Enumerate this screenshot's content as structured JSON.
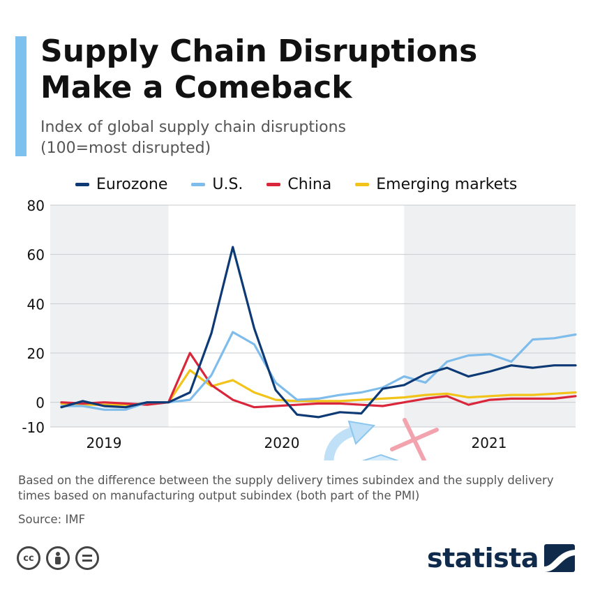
{
  "header": {
    "title_line1": "Supply Chain Disruptions",
    "title_line2": "Make a Comeback",
    "subtitle_line1": "Index of global supply chain disruptions",
    "subtitle_line2": "(100=most disrupted)",
    "accent_color": "#7ec0ee"
  },
  "footer": {
    "footnote": "Based on the difference between the supply delivery times subindex and the supply delivery times based on manufacturing output subindex (both part of the PMI)",
    "source": "Source: IMF",
    "brand": "statista",
    "license_icons": [
      "cc-icon",
      "by-icon",
      "nd-icon"
    ]
  },
  "chart_data": {
    "type": "line",
    "title": "Supply Chain Disruptions Make a Comeback",
    "subtitle": "Index of global supply chain disruptions (100=most disrupted)",
    "xlabel": "",
    "ylabel": "",
    "ylim": [
      -10,
      80
    ],
    "yticks": [
      "80",
      "60",
      "40",
      "20",
      "0",
      "-10"
    ],
    "ytick_values": [
      80,
      60,
      40,
      20,
      0,
      -10
    ],
    "x_labels": [
      "2019",
      "2020",
      "2021"
    ],
    "x_label_months": [
      5.5,
      17.5,
      29.5
    ],
    "shaded_year_spans": [
      [
        0,
        5
      ],
      [
        24,
        29
      ]
    ],
    "grid": true,
    "legend_position": "top",
    "x_months": [
      0,
      1,
      2,
      3,
      4,
      5,
      6,
      7,
      8,
      9,
      10,
      11,
      12,
      13,
      14,
      15,
      16,
      17,
      18,
      19,
      20,
      21,
      22,
      23,
      24,
      25,
      26,
      27,
      28,
      29,
      30,
      31,
      32,
      33,
      34,
      35,
      36,
      37
    ],
    "series": [
      {
        "name": "Eurozone",
        "color": "#0d3a75",
        "values": [
          -2,
          0.5,
          -1.5,
          -2,
          0,
          0,
          4,
          28,
          63,
          30,
          5,
          -5,
          -6,
          -4,
          -4.5,
          5.5,
          7,
          11.5,
          14,
          10.5,
          12.5,
          15,
          14,
          15,
          15
        ]
      },
      {
        "name": "U.S.",
        "color": "#7ebcec",
        "values": [
          -1.5,
          -1.5,
          -3,
          -3,
          0,
          0,
          1,
          11,
          28.5,
          23.5,
          8,
          1,
          1.5,
          3,
          4,
          6,
          10.5,
          8,
          16.5,
          19,
          19.5,
          16.5,
          25.5,
          26,
          27.5
        ]
      },
      {
        "name": "China",
        "color": "#d9263a",
        "values": [
          0,
          -0.5,
          0,
          -0.5,
          -1,
          0,
          20,
          7,
          1,
          -2,
          -1.5,
          -1,
          -0.5,
          -0.5,
          -1,
          -1.5,
          0,
          1.5,
          2.5,
          -1,
          1,
          1.5,
          1.5,
          1.5,
          2.5
        ]
      },
      {
        "name": "Emerging markets",
        "color": "#f2c318",
        "values": [
          -0.5,
          -1,
          -1,
          -1,
          -0.5,
          0,
          13,
          6.5,
          9,
          4,
          1,
          0.5,
          0.5,
          0.5,
          1,
          1.5,
          2,
          3,
          3.5,
          2,
          2.5,
          3,
          3,
          3.5,
          4
        ]
      }
    ],
    "series_x_months": [
      0,
      2,
      4,
      6,
      8,
      10,
      12,
      14,
      16,
      18,
      20,
      22,
      24,
      26,
      28,
      30,
      32,
      34,
      36,
      38,
      40,
      42,
      44,
      46,
      48
    ]
  }
}
